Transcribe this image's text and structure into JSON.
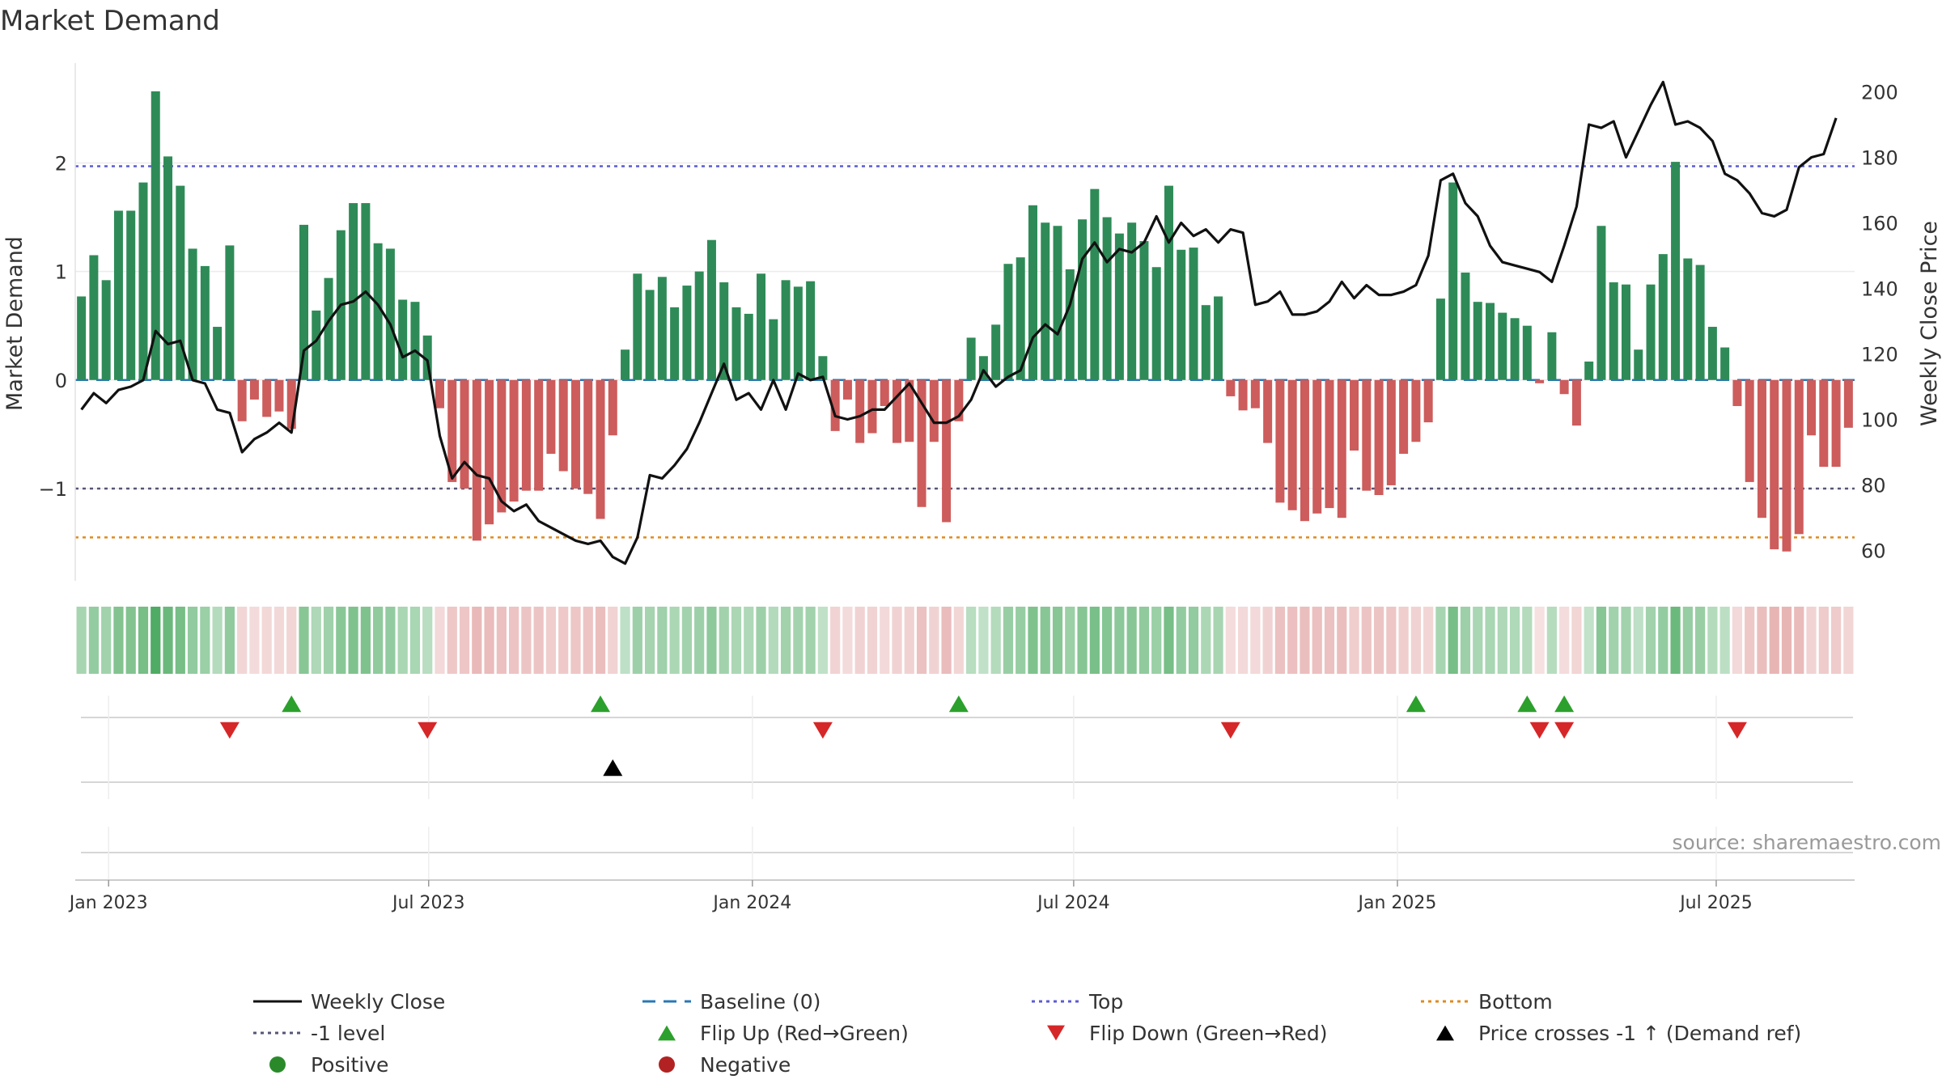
{
  "chart_data": {
    "type": "bar",
    "title": "Market Demand",
    "ylabel_left": "Market Demand",
    "ylabel_right": "Weekly Close Price",
    "ylim_left": [
      -1.85,
      2.92
    ],
    "ylim_right": [
      50.75,
      208.77
    ],
    "yticks_left": [
      {
        "v": 2,
        "label": "2"
      },
      {
        "v": 1,
        "label": "1"
      },
      {
        "v": 0,
        "label": "0"
      },
      {
        "v": -1,
        "label": "−1"
      }
    ],
    "yticks_right": [
      {
        "v": 200,
        "label": "200"
      },
      {
        "v": 180,
        "label": "180"
      },
      {
        "v": 160,
        "label": "160"
      },
      {
        "v": 140,
        "label": "140"
      },
      {
        "v": 120,
        "label": "120"
      },
      {
        "v": 100,
        "label": "100"
      },
      {
        "v": 80,
        "label": "80"
      },
      {
        "v": 60,
        "label": "60"
      }
    ],
    "xticks": [
      {
        "i": 2.2,
        "label": "Jan 2023"
      },
      {
        "i": 28.1,
        "label": "Jul 2023"
      },
      {
        "i": 54.3,
        "label": "Jan 2024"
      },
      {
        "i": 80.3,
        "label": "Jul 2024"
      },
      {
        "i": 106.5,
        "label": "Jan 2025"
      },
      {
        "i": 132.3,
        "label": "Jul 2025"
      }
    ],
    "reference_lines": {
      "top": 1.97,
      "minus_one": -1.0,
      "bottom": -1.45,
      "baseline": 0
    },
    "demand": [
      0.77,
      1.15,
      0.92,
      1.56,
      1.56,
      1.82,
      2.66,
      2.06,
      1.79,
      1.21,
      1.05,
      0.49,
      1.24,
      -0.38,
      -0.18,
      -0.34,
      -0.29,
      -0.45,
      1.43,
      0.64,
      0.94,
      1.38,
      1.63,
      1.63,
      1.26,
      1.21,
      0.74,
      0.72,
      0.41,
      -0.26,
      -0.94,
      -1.0,
      -1.48,
      -1.33,
      -1.22,
      -1.12,
      -1.02,
      -1.02,
      -0.68,
      -0.84,
      -1.0,
      -1.05,
      -1.28,
      -0.51,
      0.28,
      0.98,
      0.83,
      0.95,
      0.67,
      0.87,
      1.0,
      1.29,
      0.9,
      0.67,
      0.61,
      0.98,
      0.56,
      0.92,
      0.86,
      0.91,
      0.22,
      -0.47,
      -0.18,
      -0.58,
      -0.49,
      -0.24,
      -0.58,
      -0.57,
      -1.17,
      -0.57,
      -1.31,
      -0.38,
      0.39,
      0.22,
      0.51,
      1.07,
      1.13,
      1.61,
      1.45,
      1.42,
      1.02,
      1.48,
      1.76,
      1.5,
      1.35,
      1.45,
      1.28,
      1.04,
      1.79,
      1.2,
      1.22,
      0.69,
      0.77,
      -0.15,
      -0.28,
      -0.26,
      -0.58,
      -1.13,
      -1.2,
      -1.3,
      -1.23,
      -1.18,
      -1.27,
      -0.65,
      -1.02,
      -1.06,
      -0.97,
      -0.68,
      -0.57,
      -0.39,
      0.75,
      1.82,
      0.99,
      0.72,
      0.71,
      0.62,
      0.57,
      0.5,
      -0.03,
      0.44,
      -0.13,
      -0.42,
      0.17,
      1.42,
      0.9,
      0.88,
      0.28,
      0.88,
      1.16,
      2.01,
      1.12,
      1.06,
      0.49,
      0.3,
      -0.24,
      -0.94,
      -1.27,
      -1.56,
      -1.58,
      -1.42,
      -0.51,
      -0.8,
      -0.8,
      -0.44
    ],
    "close": [
      103,
      108,
      105,
      109,
      110,
      112,
      127,
      123,
      124,
      112,
      111,
      103,
      102,
      90,
      94,
      96,
      99,
      96,
      121,
      124,
      130,
      135,
      136,
      139,
      135,
      129,
      119,
      121,
      118,
      95,
      82,
      87,
      83,
      82,
      75,
      72,
      74,
      69,
      67,
      65,
      63,
      62,
      63,
      58,
      56,
      64,
      83,
      82,
      86,
      91,
      99,
      108,
      117,
      106,
      108,
      103,
      112,
      103,
      114,
      112,
      113,
      101,
      100,
      101,
      103,
      103,
      107,
      111,
      105,
      99,
      99,
      101,
      106,
      115,
      110,
      113,
      115,
      125,
      129,
      126,
      135,
      149,
      154,
      148,
      152,
      151,
      154,
      162,
      154,
      160,
      156,
      158,
      154,
      158,
      157,
      135,
      136,
      139,
      132,
      132,
      133,
      136,
      142,
      137,
      141,
      138,
      138,
      139,
      141,
      150,
      173,
      175,
      166,
      162,
      153,
      148,
      147,
      146,
      145,
      142,
      153,
      165,
      190,
      189,
      191,
      180,
      188,
      196,
      203,
      190,
      191,
      189,
      185,
      175,
      173,
      169,
      163,
      162,
      164,
      177,
      180,
      181,
      192
    ],
    "flip_up": [
      17,
      42,
      71,
      108,
      117,
      120
    ],
    "flip_down": [
      12,
      28,
      60,
      93,
      118,
      120,
      134
    ],
    "price_cross": [
      43
    ],
    "legend": [
      {
        "label": "Weekly Close",
        "symbol": "line-solid",
        "color": "#111111"
      },
      {
        "label": "Baseline (0)",
        "symbol": "line-dash",
        "color": "#2878b5"
      },
      {
        "label": "Top",
        "symbol": "line-dot",
        "color": "#5b5bd6"
      },
      {
        "label": "Bottom",
        "symbol": "line-dot",
        "color": "#e08a1e"
      },
      {
        "label": "-1 level",
        "symbol": "line-dot",
        "color": "#555577"
      },
      {
        "label": "Flip Up (Red→Green)",
        "symbol": "tri-up",
        "color": "#2ca02c"
      },
      {
        "label": "Flip Down (Green→Red)",
        "symbol": "tri-down",
        "color": "#d62728"
      },
      {
        "label": "Price crosses -1 ↑ (Demand ref)",
        "symbol": "tri-up",
        "color": "#000000"
      },
      {
        "label": "Positive",
        "symbol": "dot",
        "color": "#2a8a2a"
      },
      {
        "label": "Negative",
        "symbol": "dot",
        "color": "#b22222"
      }
    ],
    "source": "source: sharemaestro.com"
  },
  "colors": {
    "pos_bar": "#2e8b57",
    "neg_bar": "#cd5c5c",
    "close_line": "#111111",
    "top_line": "#5b5bd6",
    "bottom_line": "#e08a1e",
    "minus_one_line": "#555577",
    "baseline": "#2878b5",
    "flip_up": "#2ca02c",
    "flip_down": "#d62728",
    "cross": "#000000"
  }
}
